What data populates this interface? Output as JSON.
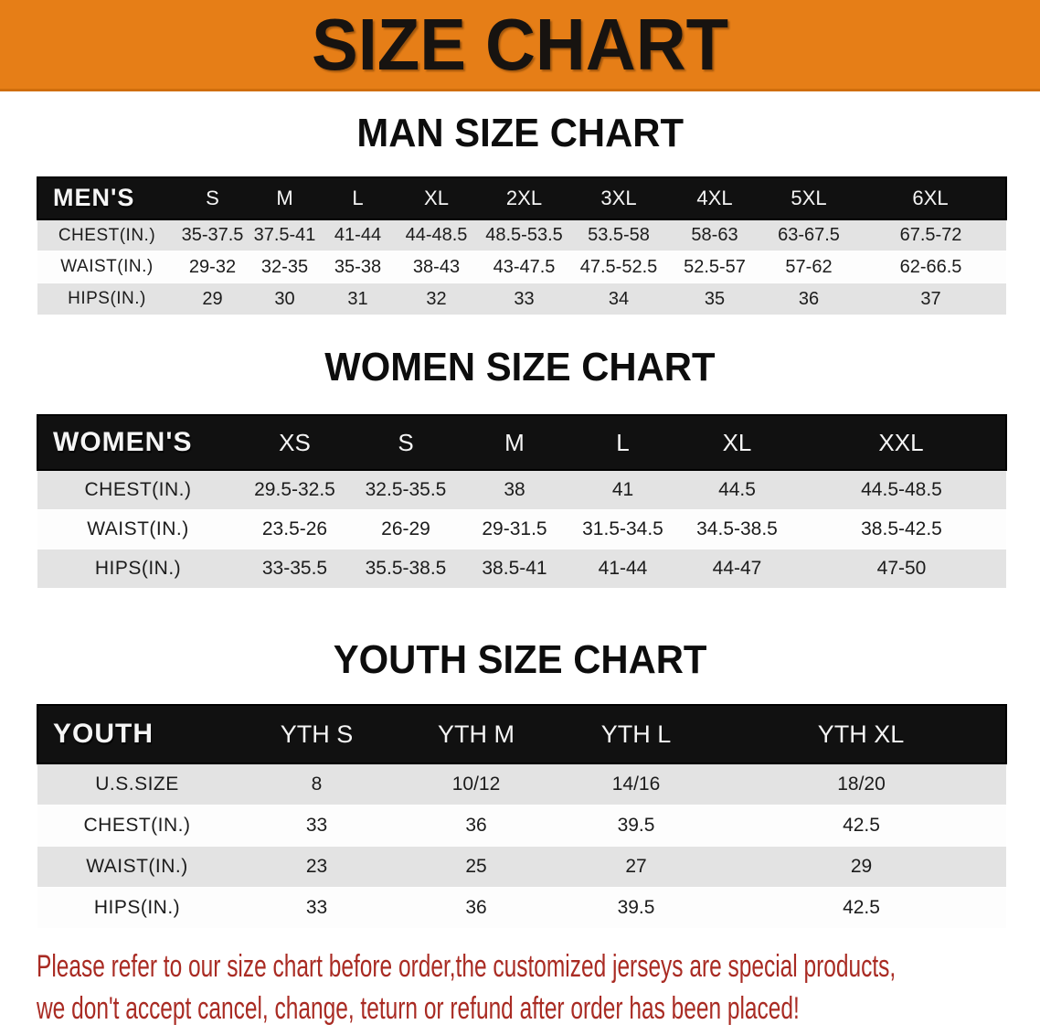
{
  "banner": {
    "title": "SIZE CHART"
  },
  "sections": [
    {
      "heading": "MAN SIZE CHART",
      "table": {
        "header_label": "MEN'S",
        "columns": [
          "S",
          "M",
          "L",
          "XL",
          "2XL",
          "3XL",
          "4XL",
          "5XL",
          "6XL"
        ],
        "rows": [
          {
            "label": "CHEST(IN.)",
            "values": [
              "35-37.5",
              "37.5-41",
              "41-44",
              "44-48.5",
              "48.5-53.5",
              "53.5-58",
              "58-63",
              "63-67.5",
              "67.5-72"
            ]
          },
          {
            "label": "WAIST(IN.)",
            "values": [
              "29-32",
              "32-35",
              "35-38",
              "38-43",
              "43-47.5",
              "47.5-52.5",
              "52.5-57",
              "57-62",
              "62-66.5"
            ]
          },
          {
            "label": "HIPS(IN.)",
            "values": [
              "29",
              "30",
              "31",
              "32",
              "33",
              "34",
              "35",
              "36",
              "37"
            ]
          }
        ]
      }
    },
    {
      "heading": "WOMEN SIZE CHART",
      "table": {
        "header_label": "WOMEN'S",
        "columns": [
          "XS",
          "S",
          "M",
          "L",
          "XL",
          "XXL"
        ],
        "rows": [
          {
            "label": "CHEST(IN.)",
            "values": [
              "29.5-32.5",
              "32.5-35.5",
              "38",
              "41",
              "44.5",
              "44.5-48.5"
            ]
          },
          {
            "label": "WAIST(IN.)",
            "values": [
              "23.5-26",
              "26-29",
              "29-31.5",
              "31.5-34.5",
              "34.5-38.5",
              "38.5-42.5"
            ]
          },
          {
            "label": "HIPS(IN.)",
            "values": [
              "33-35.5",
              "35.5-38.5",
              "38.5-41",
              "41-44",
              "44-47",
              "47-50"
            ]
          }
        ]
      }
    },
    {
      "heading": "YOUTH SIZE CHART",
      "table": {
        "header_label": "YOUTH",
        "columns": [
          "YTH S",
          "YTH M",
          "YTH L",
          "YTH XL"
        ],
        "rows": [
          {
            "label": "U.S.SIZE",
            "values": [
              "8",
              "10/12",
              "14/16",
              "18/20"
            ]
          },
          {
            "label": "CHEST(IN.)",
            "values": [
              "33",
              "36",
              "39.5",
              "42.5"
            ]
          },
          {
            "label": "WAIST(IN.)",
            "values": [
              "23",
              "25",
              "27",
              "29"
            ]
          },
          {
            "label": "HIPS(IN.)",
            "values": [
              "33",
              "36",
              "39.5",
              "42.5"
            ]
          }
        ]
      }
    }
  ],
  "disclaimer": {
    "line1": "Please refer to our size chart before order,the customized jerseys are special products,",
    "line2": "we don't accept cancel, change, teturn or refund after order has been placed!"
  },
  "colors": {
    "banner_bg": "#E67E17",
    "banner_edge": "#D06E0C",
    "table_header_bg": "#111111",
    "table_header_text": "#F5F5F5",
    "row_stripe": "#E3E3E3",
    "row_alt": "#FDFDFD",
    "heading_text": "#0D0D0D",
    "warning_text": "#A92B23"
  }
}
